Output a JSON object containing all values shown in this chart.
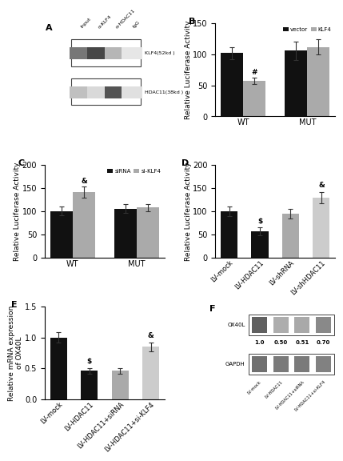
{
  "panel_B": {
    "ylabel": "Relative Luciferase Activity",
    "ylim": [
      0,
      150
    ],
    "yticks": [
      0,
      50,
      100,
      150
    ],
    "groups": [
      "WT",
      "MUT"
    ],
    "legend_labels": [
      "vector",
      "KLF4"
    ],
    "bar_colors": [
      "#111111",
      "#aaaaaa"
    ],
    "values": [
      [
        102,
        57
      ],
      [
        106,
        112
      ]
    ],
    "errors": [
      [
        10,
        5
      ],
      [
        15,
        12
      ]
    ],
    "annotations": [
      [
        "",
        "#"
      ],
      [
        "",
        ""
      ]
    ]
  },
  "panel_C": {
    "ylabel": "Relative Luciferase Activity",
    "ylim": [
      0,
      200
    ],
    "yticks": [
      0,
      50,
      100,
      150,
      200
    ],
    "groups": [
      "WT",
      "MUT"
    ],
    "legend_labels": [
      "siRNA",
      "si-KLF4"
    ],
    "bar_colors": [
      "#111111",
      "#aaaaaa"
    ],
    "values": [
      [
        101,
        141
      ],
      [
        106,
        108
      ]
    ],
    "errors": [
      [
        10,
        12
      ],
      [
        10,
        8
      ]
    ],
    "annotations": [
      [
        "",
        "&"
      ],
      [
        "",
        ""
      ]
    ]
  },
  "panel_D": {
    "ylabel": "Relative Luciferase Activity",
    "ylim": [
      0,
      200
    ],
    "yticks": [
      0,
      50,
      100,
      150,
      200
    ],
    "groups": [
      "LV-mock",
      "LV-HDAC11",
      "LV-shRNA",
      "LV-shHDAC11"
    ],
    "bar_colors": [
      "#111111",
      "#111111",
      "#aaaaaa",
      "#cccccc"
    ],
    "values": [
      100,
      57,
      95,
      130
    ],
    "errors": [
      10,
      8,
      10,
      12
    ],
    "annotations": [
      "",
      "$",
      "",
      "&"
    ]
  },
  "panel_E": {
    "ylabel": "Relative mRNA expression\nof OX40L",
    "ylim": [
      0,
      1.5
    ],
    "yticks": [
      0.0,
      0.5,
      1.0,
      1.5
    ],
    "groups": [
      "LV-mock",
      "LV-HDAC11",
      "LV-HDAC11+siRNA",
      "LV-HDAC11+si-KLF4"
    ],
    "bar_colors": [
      "#111111",
      "#111111",
      "#aaaaaa",
      "#cccccc"
    ],
    "values": [
      1.0,
      0.46,
      0.46,
      0.85
    ],
    "errors": [
      0.08,
      0.05,
      0.04,
      0.07
    ],
    "annotations": [
      "",
      "$",
      "",
      "&"
    ]
  },
  "panel_A": {
    "col_labels": [
      "Input",
      "α-KLF4",
      "α-HDAC11",
      "IgG"
    ],
    "row_labels": [
      "KLF4(52kd )",
      "HDAC11(38kd )"
    ],
    "klf4_intensities": [
      0.65,
      0.88,
      0.35,
      0.12
    ],
    "hdac11_intensities": [
      0.3,
      0.18,
      0.82,
      0.15
    ]
  },
  "panel_F": {
    "ox40l_values": [
      "1.0",
      "0.50",
      "0.51",
      "0.70"
    ],
    "ox40l_intensities": [
      0.78,
      0.4,
      0.42,
      0.58
    ],
    "gapdh_intensities": [
      0.7,
      0.65,
      0.65,
      0.62
    ],
    "xlabels": [
      "LV-mock",
      "LV-HDAC11",
      "LV-HDAC11+siRNA",
      "LV-HDAC11+si-KLF4"
    ]
  },
  "background_color": "#ffffff",
  "bar_width": 0.35,
  "fontsize_label": 6.5,
  "fontsize_tick": 6,
  "fontsize_title": 8
}
